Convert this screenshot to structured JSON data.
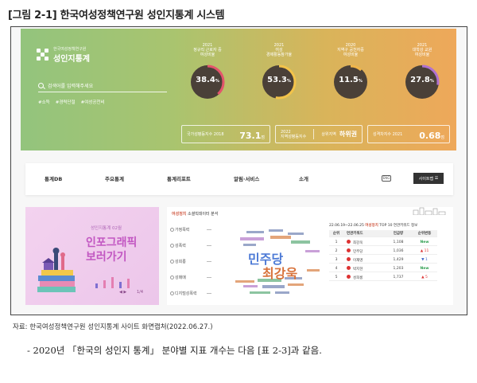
{
  "figure_title": "[그림 2-1] 한국여성정책연구원 성인지통계 시스템",
  "site": {
    "logo_small": "한국여성정책연구원",
    "logo_main": "성인지통계",
    "search_placeholder": "검색어를 입력해주세요",
    "tags": [
      "#소득",
      "#경력단절",
      "#여성공천비"
    ]
  },
  "stats": [
    {
      "label": "2021\n정규직 근로자 중\n여성비율",
      "value": "38.4",
      "unit": "%",
      "percent": 38.4,
      "color": "#e3546b"
    },
    {
      "label": "2021\n여성\n경제활동참가율",
      "value": "53.3",
      "unit": "%",
      "percent": 53.3,
      "color": "#f3c34a"
    },
    {
      "label": "2020\n지역구 공천자중\n여성비율",
      "value": "11.5",
      "unit": "%",
      "percent": 11.5,
      "color": "#f0b54a"
    },
    {
      "label": "2021\n대학강 교원\n여성비율",
      "value": "27.8",
      "unit": "%",
      "percent": 27.8,
      "color": "#b071d0"
    }
  ],
  "boxes": [
    {
      "items": [
        {
          "label": "국가성평등지수 2018",
          "value": "73.1",
          "unit": "점"
        }
      ]
    },
    {
      "items": [
        {
          "label": "2022\n지역성평등지수",
          "value": ""
        },
        {
          "label": "상위지역",
          "value": "하위권"
        }
      ]
    },
    {
      "items": [
        {
          "label": "성격차지수 2021",
          "value": "0.68",
          "unit": "점"
        }
      ]
    }
  ],
  "nav": {
    "items": [
      "통계DB",
      "주요통계",
      "통계리포트",
      "알림·서비스",
      "소개"
    ],
    "icon_label": "ENG",
    "button": "사이트맵"
  },
  "infographic": {
    "subtitle": "성인지통계 02월",
    "title_line1": "인포그래픽",
    "title_line2": "보러가기",
    "page": "1/4",
    "arrows": "◀ ▶"
  },
  "panel": {
    "title_highlight": "여성정치",
    "title_rest": " 소셜빅데이터 분석",
    "pills": [
      "가정폭력",
      "성폭력",
      "성희롱",
      "성매매",
      "디지털성폭력"
    ],
    "cloud_words": [
      {
        "text": "민주당",
        "color": "#4e7bd6",
        "cls": "cw1"
      },
      {
        "text": "최강욱",
        "color": "#d8733c",
        "cls": "cw2"
      }
    ],
    "table_header_prefix": "22.06.19~22.06.25 ",
    "table_header_highlight": "여성정치",
    "table_header_rest": " TOP 10 연관키워드 정보",
    "columns": [
      "순위",
      "연관키워드",
      "언급량",
      "순위변동"
    ],
    "rows": [
      {
        "rank": "1",
        "keyword": "최강욱",
        "count": "1,108",
        "change": "New",
        "dir": "new"
      },
      {
        "rank": "2",
        "keyword": "민주당",
        "count": "1,036",
        "change": "▲ 11",
        "dir": "up"
      },
      {
        "rank": "3",
        "keyword": "이재명",
        "count": "1,429",
        "change": "▼ 1",
        "dir": "down"
      },
      {
        "rank": "4",
        "keyword": "박지현",
        "count": "1,203",
        "change": "New",
        "dir": "new"
      },
      {
        "rank": "5",
        "keyword": "성희롱",
        "count": "1,737",
        "change": "▲ 5",
        "dir": "up"
      }
    ]
  },
  "source": "자료: 한국여성정책연구원 성인지통계 사이트 화면캡처(2022.06.27.)",
  "body_line": "- 2020년 「한국의 성인지 통계」 분야별 지표 개수는 다음 [표 2-3]과 같음."
}
